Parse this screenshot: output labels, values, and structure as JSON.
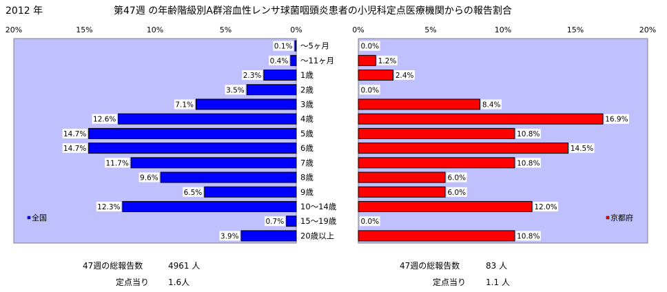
{
  "header": {
    "year": "2012 年",
    "title": "第47週 の年齢階級別A群溶血性レンサ球菌咽頭炎患者の小児科定点医療機関からの報告割合"
  },
  "chart_data": [
    {
      "type": "bar",
      "orientation": "horizontal",
      "direction": "right-to-left",
      "categories": [
        "～5ヶ月",
        "～11ヶ月",
        "1歳",
        "2歳",
        "3歳",
        "4歳",
        "5歳",
        "6歳",
        "7歳",
        "8歳",
        "9歳",
        "10～14歳",
        "15～19歳",
        "20歳以上"
      ],
      "series": [
        {
          "name": "全国",
          "values": [
            0.1,
            0.4,
            2.3,
            3.5,
            7.1,
            12.6,
            14.7,
            14.7,
            11.7,
            9.6,
            6.5,
            12.3,
            0.7,
            3.9
          ],
          "color": "#0000ff"
        }
      ],
      "data_labels": [
        "0.1%",
        "0.4%",
        "2.3%",
        "3.5%",
        "7.1%",
        "12.6%",
        "14.7%",
        "14.7%",
        "11.7%",
        "9.6%",
        "6.5%",
        "12.3%",
        "0.7%",
        "3.9%"
      ],
      "xlim": [
        0,
        20
      ],
      "xticks": [
        "20%",
        "15%",
        "10%",
        "5%",
        "0%"
      ],
      "legend": "bottom-left",
      "plot_bg": "#c0c0ff"
    },
    {
      "type": "bar",
      "orientation": "horizontal",
      "direction": "left-to-right",
      "categories": [
        "～5ヶ月",
        "～11ヶ月",
        "1歳",
        "2歳",
        "3歳",
        "4歳",
        "5歳",
        "6歳",
        "7歳",
        "8歳",
        "9歳",
        "10～14歳",
        "15～19歳",
        "20歳以上"
      ],
      "series": [
        {
          "name": "京都府",
          "values": [
            0.0,
            1.2,
            2.4,
            0.0,
            8.4,
            16.9,
            10.8,
            14.5,
            10.8,
            6.0,
            6.0,
            12.0,
            0.0,
            10.8
          ],
          "color": "#ff0000"
        }
      ],
      "data_labels": [
        "0.0%",
        "1.2%",
        "2.4%",
        "0.0%",
        "8.4%",
        "16.9%",
        "10.8%",
        "14.5%",
        "10.8%",
        "6.0%",
        "6.0%",
        "12.0%",
        "0.0%",
        "10.8%"
      ],
      "xlim": [
        0,
        20
      ],
      "xticks": [
        "0%",
        "5%",
        "10%",
        "15%",
        "20%"
      ],
      "legend": "bottom-right",
      "plot_bg": "#c0c0ff"
    }
  ],
  "footer": {
    "national": {
      "total_label": "47週の総報告数",
      "total_value": "4961 人",
      "per_label": "定点当り",
      "per_value": "1.6人"
    },
    "kyoto": {
      "total_label": "47週の総報告数",
      "total_value": "83 人",
      "per_label": "定点当り",
      "per_value": "1.1 人"
    }
  }
}
